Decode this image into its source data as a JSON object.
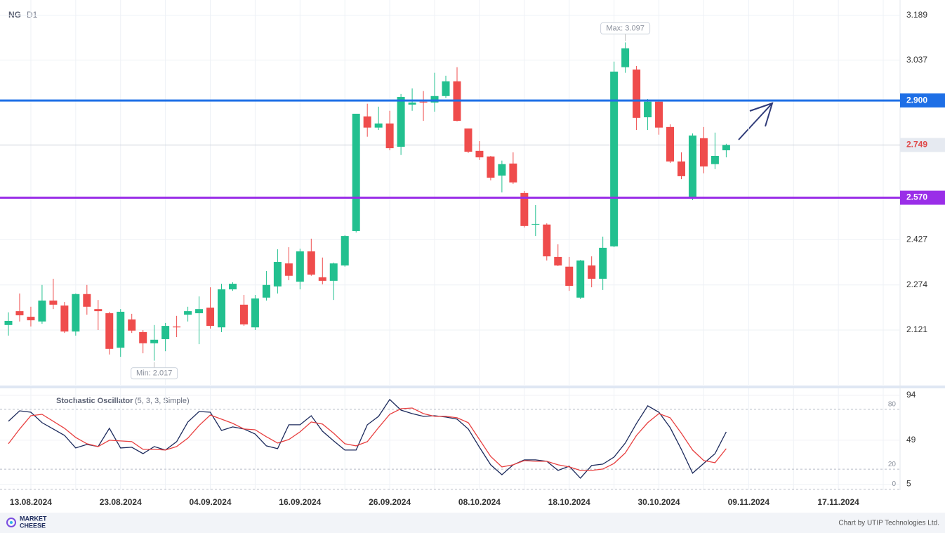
{
  "chart_data": [
    {
      "type": "candlestick",
      "symbol": "NG",
      "timeframe": "D1",
      "categories": [
        null,
        null,
        "13.08.2024",
        null,
        null,
        null,
        null,
        null,
        null,
        null,
        "23.08.2024",
        null,
        null,
        null,
        null,
        null,
        null,
        null,
        "04.09.2024",
        null,
        null,
        null,
        null,
        null,
        null,
        null,
        "16.09.2024",
        null,
        null,
        null,
        null,
        null,
        null,
        null,
        "26.09.2024",
        null,
        null,
        null,
        null,
        null,
        null,
        null,
        "08.10.2024",
        null,
        null,
        null,
        null,
        null,
        null,
        null,
        "18.10.2024",
        null,
        null,
        null,
        null,
        null,
        null,
        null,
        "30.10.2024",
        null,
        null,
        null,
        null,
        null,
        null,
        null,
        "09.11.2024",
        null,
        null,
        null,
        null,
        null,
        null,
        null,
        "17.11.2024",
        null,
        null,
        null,
        null,
        null
      ],
      "open": [
        2.138,
        2.185,
        2.166,
        2.15,
        2.221,
        2.204,
        2.116,
        2.243,
        2.192,
        2.178,
        2.061,
        2.157,
        2.114,
        2.076,
        2.09,
        2.133,
        2.173,
        2.178,
        2.197,
        2.13,
        2.259,
        2.207,
        2.13,
        2.231,
        2.269,
        2.347,
        2.285,
        2.388,
        2.3,
        2.288,
        2.34,
        2.457,
        2.846,
        2.808,
        2.822,
        2.743,
        2.886,
        2.896,
        2.893,
        2.915,
        2.965,
        2.805,
        2.729,
        2.71,
        2.645,
        2.686,
        2.586,
        2.479,
        2.479,
        2.369,
        2.336,
        2.231,
        2.34,
        2.295,
        2.405,
        3.013,
        3.005,
        2.843,
        2.896,
        2.81,
        2.693,
        2.567,
        2.772,
        2.684,
        2.731,
        null,
        null,
        null,
        null,
        null,
        null,
        null,
        null,
        null,
        null,
        null,
        null,
        null,
        null,
        null
      ],
      "high": [
        2.181,
        2.245,
        2.2,
        2.274,
        2.295,
        2.216,
        2.245,
        2.274,
        2.223,
        2.183,
        2.192,
        2.176,
        2.121,
        2.138,
        2.145,
        2.169,
        2.2,
        2.235,
        2.266,
        2.278,
        2.283,
        2.24,
        2.24,
        2.321,
        2.395,
        2.402,
        2.397,
        2.431,
        2.367,
        2.35,
        2.443,
        2.855,
        2.889,
        2.879,
        2.865,
        2.922,
        2.941,
        2.932,
        2.994,
        2.984,
        3.013,
        2.805,
        2.762,
        2.712,
        2.696,
        2.724,
        2.593,
        2.545,
        2.483,
        2.412,
        2.369,
        2.359,
        2.371,
        2.438,
        3.032,
        3.097,
        3.017,
        2.905,
        2.901,
        2.819,
        2.724,
        2.788,
        2.81,
        2.791,
        2.753,
        null,
        null,
        null,
        null,
        null,
        null,
        null,
        null,
        null,
        null,
        null,
        null,
        null,
        null,
        null
      ],
      "low": [
        2.102,
        2.15,
        2.133,
        2.142,
        2.192,
        2.111,
        2.102,
        2.173,
        2.121,
        2.038,
        2.03,
        2.111,
        2.042,
        2.017,
        2.049,
        2.097,
        2.15,
        2.073,
        2.126,
        2.114,
        2.254,
        2.135,
        2.121,
        2.221,
        2.245,
        2.29,
        2.259,
        2.305,
        2.276,
        2.223,
        2.336,
        2.452,
        2.777,
        2.8,
        2.731,
        2.715,
        2.865,
        2.831,
        2.862,
        2.908,
        2.829,
        2.722,
        2.698,
        2.629,
        2.588,
        2.617,
        2.469,
        2.44,
        2.357,
        2.338,
        2.254,
        2.226,
        2.266,
        2.257,
        2.402,
        2.994,
        2.8,
        2.8,
        2.784,
        2.688,
        2.633,
        2.562,
        2.653,
        2.667,
        2.707,
        null,
        null,
        null,
        null,
        null,
        null,
        null,
        null,
        null,
        null,
        null,
        null,
        null,
        null,
        null
      ],
      "close": [
        2.152,
        2.171,
        2.154,
        2.221,
        2.207,
        2.116,
        2.243,
        2.2,
        2.185,
        2.057,
        2.183,
        2.119,
        2.076,
        2.088,
        2.135,
        2.13,
        2.185,
        2.192,
        2.135,
        2.259,
        2.278,
        2.14,
        2.228,
        2.274,
        2.352,
        2.305,
        2.388,
        2.309,
        2.288,
        2.347,
        2.44,
        2.855,
        2.808,
        2.822,
        2.738,
        2.912,
        2.893,
        2.893,
        2.915,
        2.965,
        2.831,
        2.726,
        2.707,
        2.638,
        2.684,
        2.622,
        2.474,
        2.481,
        2.371,
        2.34,
        2.271,
        2.357,
        2.295,
        2.4,
        2.998,
        3.077,
        2.841,
        2.896,
        2.808,
        2.693,
        2.643,
        2.781,
        2.676,
        2.712,
        2.749,
        null,
        null,
        null,
        null,
        null,
        null,
        null,
        null,
        null,
        null,
        null,
        null,
        null,
        null,
        null
      ],
      "up_color": "#22c08f",
      "down_color": "#ef4c4c",
      "ylim": [
        1.935,
        3.241
      ],
      "yticks": [
        2.121,
        2.274,
        2.427,
        3.037,
        3.189
      ],
      "grid": true,
      "levels": [
        {
          "value": 2.9,
          "label": "2.900",
          "color": "#1e6fe6"
        },
        {
          "value": 2.57,
          "label": "2.570",
          "color": "#9a2ee8"
        }
      ],
      "last_price": 2.749,
      "max_label": "Max: 3.097",
      "min_label": "Min: 2.017"
    },
    {
      "type": "line",
      "title": "Stochastic Oscillator",
      "subtitle": "(5, 3, 3, Simple)",
      "ylim": [
        -1,
        101
      ],
      "yticks": [
        5,
        49,
        94
      ],
      "levels": [
        0,
        20,
        80
      ],
      "grid": true,
      "series": [
        {
          "color": "#1c2a5c",
          "values": [
            68,
            78.5,
            77.1,
            66.6,
            60.3,
            53.9,
            41.3,
            44.8,
            42.7,
            61,
            41.3,
            42,
            35.6,
            42.7,
            39.2,
            47.6,
            67.3,
            77.8,
            77.1,
            58.8,
            62.4,
            60.3,
            55.3,
            43.4,
            40.6,
            64.5,
            64.5,
            73.6,
            58.1,
            48.3,
            39.2,
            39.2,
            64.5,
            72.9,
            89.8,
            79.2,
            75.7,
            72.9,
            73.6,
            72.2,
            70.1,
            60.3,
            42,
            24.4,
            14.5,
            24.4,
            29.3,
            29.3,
            27.9,
            18.8,
            23,
            11,
            23.7,
            25.1,
            32.1,
            46.2,
            65.9,
            83.5,
            77.1,
            61.7,
            39.9,
            16,
            25.8,
            35.6,
            57.4,
            null,
            null,
            null,
            null,
            null,
            null,
            null,
            null,
            null,
            null,
            null,
            null,
            null,
            null,
            null
          ]
        },
        {
          "color": "#e84040",
          "values": [
            45.5,
            60.3,
            73.6,
            75,
            68,
            61,
            51.8,
            45.5,
            42.7,
            49,
            48.3,
            47.6,
            39.9,
            39.9,
            39.2,
            42.7,
            51.1,
            63.8,
            74.3,
            70.1,
            65.9,
            60.3,
            59.5,
            52.5,
            46.2,
            49.7,
            57.4,
            67.3,
            65.2,
            56,
            45.5,
            43.4,
            47.6,
            61.7,
            75,
            80.6,
            81.3,
            75.7,
            72.9,
            72.9,
            71.5,
            66.6,
            49.7,
            32.8,
            22.3,
            24.4,
            28.6,
            27.9,
            27.9,
            24.4,
            22.3,
            18.8,
            18.8,
            20.2,
            25.8,
            36.3,
            53.9,
            66.6,
            75.7,
            71.5,
            56,
            39.2,
            28.6,
            26.5,
            40.6,
            null,
            null,
            null,
            null,
            null,
            null,
            null,
            null,
            null,
            null,
            null,
            null,
            null,
            null,
            null
          ]
        }
      ]
    }
  ],
  "footer": {
    "logo": [
      "MARKET",
      "CHEESE"
    ],
    "credit": "Chart by UTIP Technologies Ltd."
  }
}
